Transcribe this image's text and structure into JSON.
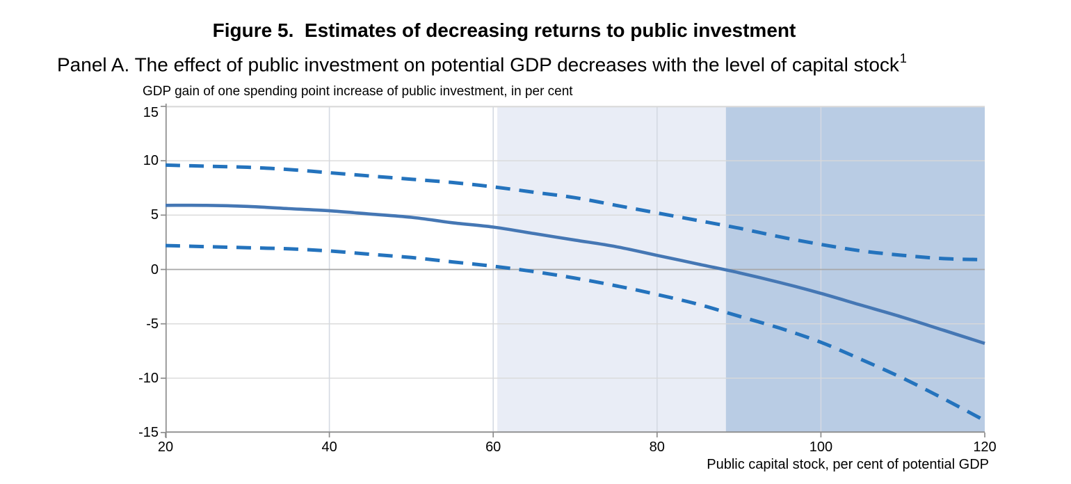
{
  "figure": {
    "title": "Figure 5.  Estimates of decreasing returns to public investment",
    "panel_title": "Panel A. The effect of public investment on potential GDP decreases with the level of capital stock",
    "footnote_marker": "1"
  },
  "chart_data": {
    "type": "line",
    "title": "Figure 5. Estimates of decreasing returns to public investment — Panel A",
    "ylabel": "GDP gain of one spending point increase of public investment, in per cent",
    "xlabel": "Public capital stock, per cent of potential GDP",
    "xlim": [
      20,
      120
    ],
    "ylim": [
      -15,
      15
    ],
    "x_ticks": [
      20,
      40,
      60,
      80,
      100,
      120
    ],
    "y_ticks": [
      15,
      10,
      5,
      0,
      -5,
      -10,
      -15
    ],
    "grid": true,
    "legend_position": "none",
    "x": [
      20,
      25,
      30,
      35,
      40,
      45,
      50,
      55,
      60,
      65,
      70,
      75,
      80,
      85,
      90,
      95,
      100,
      105,
      110,
      115,
      120
    ],
    "series": [
      {
        "name": "central-estimate",
        "style": "solid",
        "color": "#4577b4",
        "values": [
          5.9,
          5.9,
          5.8,
          5.6,
          5.4,
          5.1,
          4.8,
          4.3,
          3.9,
          3.3,
          2.7,
          2.1,
          1.3,
          0.5,
          -0.3,
          -1.2,
          -2.2,
          -3.3,
          -4.4,
          -5.6,
          -6.8
        ]
      },
      {
        "name": "upper-confidence-band",
        "style": "dashed",
        "color": "#2473bd",
        "values": [
          9.6,
          9.5,
          9.4,
          9.2,
          8.9,
          8.6,
          8.3,
          8.0,
          7.6,
          7.1,
          6.6,
          5.9,
          5.2,
          4.5,
          3.8,
          3.0,
          2.3,
          1.7,
          1.3,
          1.0,
          0.9
        ]
      },
      {
        "name": "lower-confidence-band",
        "style": "dashed",
        "color": "#2473bd",
        "values": [
          2.2,
          2.1,
          2.0,
          1.9,
          1.7,
          1.4,
          1.1,
          0.7,
          0.3,
          -0.2,
          -0.8,
          -1.5,
          -2.3,
          -3.2,
          -4.3,
          -5.4,
          -6.7,
          -8.3,
          -10.0,
          -11.9,
          -13.9
        ]
      }
    ],
    "shaded_regions": [
      {
        "from": 60.5,
        "to": 88.4,
        "color": "#e9edf6"
      },
      {
        "from": 88.4,
        "to": 120,
        "color": "#b9cce4"
      }
    ],
    "colors": {
      "gridline": "#d9d9d9",
      "zero_line": "#a8a8a8",
      "axis_line": "#8c8c8c"
    }
  }
}
